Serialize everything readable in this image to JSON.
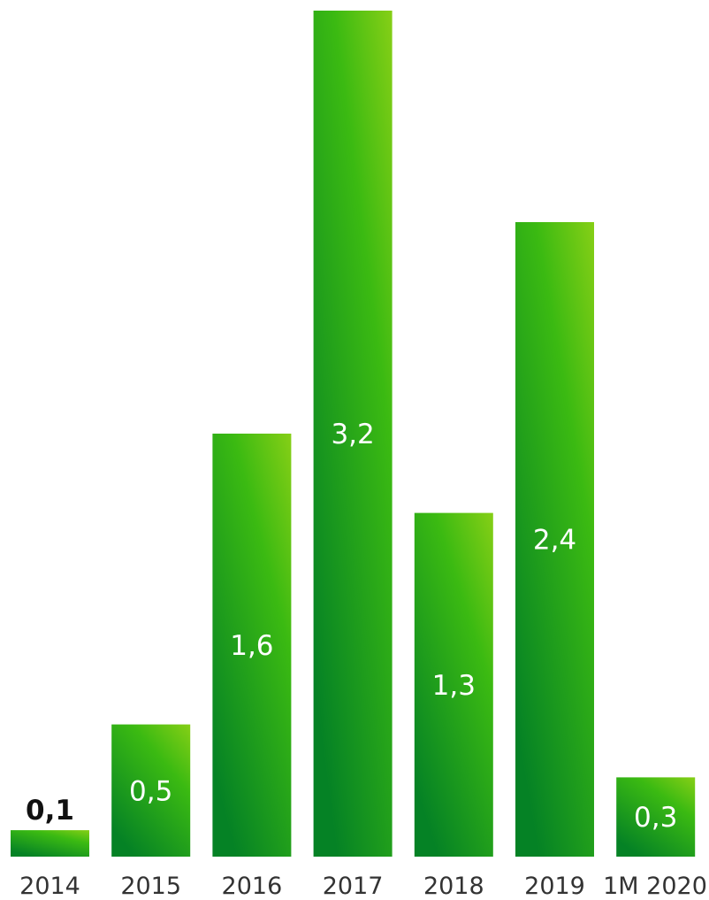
{
  "chart_data": {
    "type": "bar",
    "categories": [
      "2014",
      "2015",
      "2016",
      "2017",
      "2018",
      "2019",
      "1M 2020"
    ],
    "values": [
      0.1,
      0.5,
      1.6,
      3.2,
      1.3,
      2.4,
      0.3
    ],
    "value_labels": [
      "0,1",
      "0,5",
      "1,6",
      "3,2",
      "1,3",
      "2,4",
      "0,3"
    ],
    "ylim": [
      0,
      3.2
    ],
    "grid": false,
    "colors": {
      "bar_top": "#86cf16",
      "bar_mid": "#3bba12",
      "bar_bottom": "#058225"
    }
  }
}
